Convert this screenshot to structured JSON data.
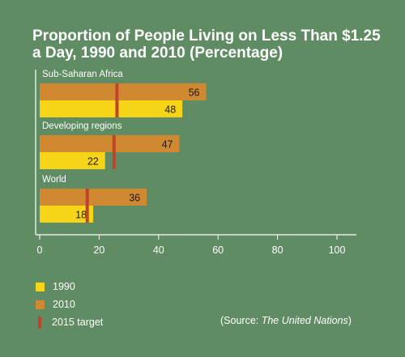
{
  "chart_data": {
    "type": "bar",
    "orientation": "horizontal",
    "title": "Proportion of People Living on Less Than $1.25 a Day, 1990 and 2010 (Percentage)",
    "groups": [
      {
        "label": "Sub-Saharan Africa",
        "v2010": 56,
        "v1990": 48,
        "target": 26
      },
      {
        "label": "Developing regions",
        "v2010": 47,
        "v1990": 22,
        "target": 25
      },
      {
        "label": "World",
        "v2010": 36,
        "v1990": 18,
        "target": 16
      }
    ],
    "series": [
      {
        "name": "1990",
        "color": "#f6d417"
      },
      {
        "name": "2010",
        "color": "#d08930"
      },
      {
        "name": "2015 target",
        "color": "#c0442b"
      }
    ],
    "xlim": [
      0,
      100
    ],
    "xticks": [
      "0",
      "20",
      "40",
      "60",
      "80",
      "100"
    ],
    "grid": false,
    "legend_position": "bottom-left"
  },
  "legend": [
    {
      "label": "1990",
      "color": "#f6d417"
    },
    {
      "label": "2010",
      "color": "#d08930"
    },
    {
      "label": "2015 target",
      "color": "#c0442b"
    }
  ],
  "source": {
    "prefix": "(Source: ",
    "name": "The United Nations",
    "suffix": ")"
  }
}
